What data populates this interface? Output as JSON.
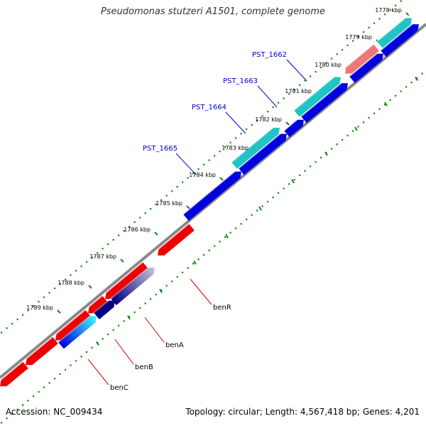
{
  "title": "Pseudomonas stutzeri A1501, complete genome",
  "footer": {
    "accession": "Accession: NC_009434",
    "summary": "Topology: circular; Length: 4,567,418 bp; Genes: 4,201"
  },
  "colors": {
    "forward_cds": "#0000dd",
    "reverse_cds": "#ee0000",
    "rna_forward": "#20c4c4",
    "rna_reverse": "#ee7777",
    "backbone": "#888888",
    "ticks": "#118811",
    "locus_label": "#0000cc",
    "gene_label": "#cc0000"
  },
  "ticks": [
    {
      "label": "1778 kbp"
    },
    {
      "label": "1779 kbp"
    },
    {
      "label": "1780 kbp"
    },
    {
      "label": "1781 kbp"
    },
    {
      "label": "1782 kbp"
    },
    {
      "label": "1783 kbp"
    },
    {
      "label": "1784 kbp"
    },
    {
      "label": "1785 kbp"
    },
    {
      "label": "1786 kbp"
    },
    {
      "label": "1787 kbp"
    },
    {
      "label": "1788 kbp"
    },
    {
      "label": "1789 kbp"
    }
  ],
  "locus_labels": [
    {
      "name": "PST_1662"
    },
    {
      "name": "PST_1663"
    },
    {
      "name": "PST_1664"
    },
    {
      "name": "PST_1665"
    }
  ],
  "gene_labels": [
    {
      "name": "benR"
    },
    {
      "name": "benA"
    },
    {
      "name": "benB"
    },
    {
      "name": "benC"
    }
  ]
}
